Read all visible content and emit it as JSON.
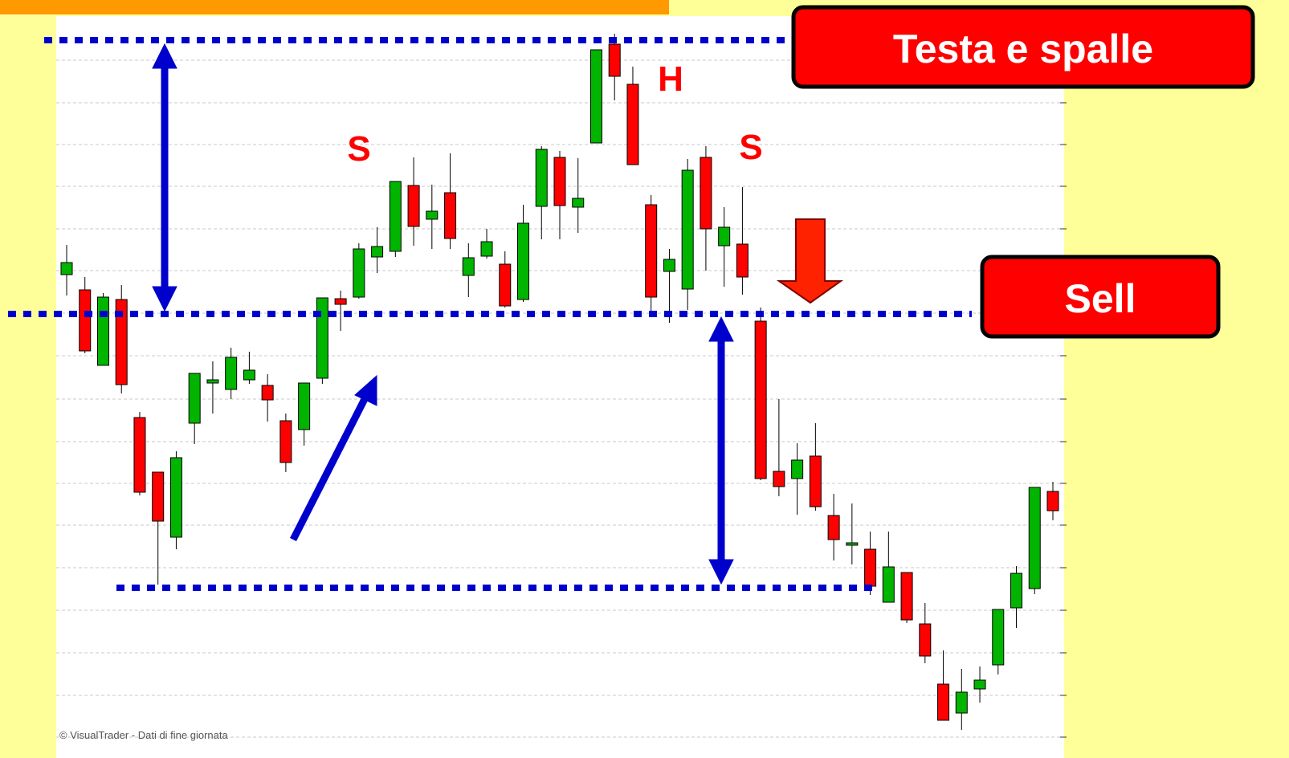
{
  "chart_data": {
    "type": "candlestick",
    "annotations": {
      "title_box": "Testa e spalle",
      "sell_box": "Sell",
      "left_shoulder": "S",
      "head": "H",
      "right_shoulder": "S",
      "credit": "© VisualTrader - Dati di fine giornata"
    },
    "up_color": "#00b400",
    "down_color": "#ff0000",
    "ylim": [
      0,
      900
    ],
    "yticks": [
      2,
      54,
      107,
      160,
      213,
      266,
      318,
      370,
      423,
      477,
      530,
      583,
      635,
      688,
      740,
      792,
      845
    ],
    "grid": true,
    "open": [
      578,
      559,
      465,
      547,
      400,
      332,
      251,
      393,
      443,
      435,
      447,
      440,
      396,
      385,
      449,
      548,
      550,
      600,
      607,
      689,
      647,
      680,
      577,
      601,
      591,
      547,
      663,
      724,
      662,
      742,
      865,
      815,
      665,
      582,
      560,
      724,
      614,
      616,
      520,
      333,
      324,
      352,
      278,
      241,
      236,
      170,
      207,
      143,
      68,
      32,
      62,
      92,
      163,
      187,
      308
    ],
    "high": [
      615,
      575,
      555,
      565,
      407,
      332,
      358,
      455,
      470,
      487,
      482,
      454,
      405,
      443,
      549,
      558,
      617,
      637,
      694,
      724,
      690,
      729,
      617,
      635,
      607,
      665,
      738,
      732,
      723,
      858,
      878,
      837,
      677,
      610,
      722,
      738,
      662,
      687,
      537,
      423,
      368,
      393,
      305,
      293,
      258,
      258,
      207,
      169,
      110,
      87,
      90,
      161,
      215,
      313,
      320
    ],
    "low": [
      552,
      480,
      465,
      430,
      303,
      192,
      236,
      367,
      405,
      423,
      442,
      395,
      332,
      365,
      442,
      508,
      548,
      580,
      600,
      614,
      610,
      610,
      550,
      598,
      537,
      544,
      622,
      622,
      630,
      742,
      795,
      715,
      532,
      518,
      534,
      583,
      563,
      553,
      322,
      302,
      279,
      284,
      222,
      217,
      179,
      170,
      144,
      94,
      23,
      11,
      45,
      80,
      138,
      180,
      272
    ],
    "close": [
      593,
      483,
      550,
      441,
      307,
      271,
      350,
      455,
      447,
      475,
      459,
      422,
      344,
      443,
      549,
      541,
      610,
      613,
      694,
      638,
      657,
      623,
      599,
      619,
      539,
      642,
      734,
      664,
      673,
      858,
      825,
      715,
      550,
      597,
      708,
      635,
      637,
      575,
      324,
      314,
      347,
      289,
      248,
      244,
      190,
      214,
      148,
      103,
      23,
      58,
      73,
      161,
      206,
      313,
      284
    ]
  }
}
